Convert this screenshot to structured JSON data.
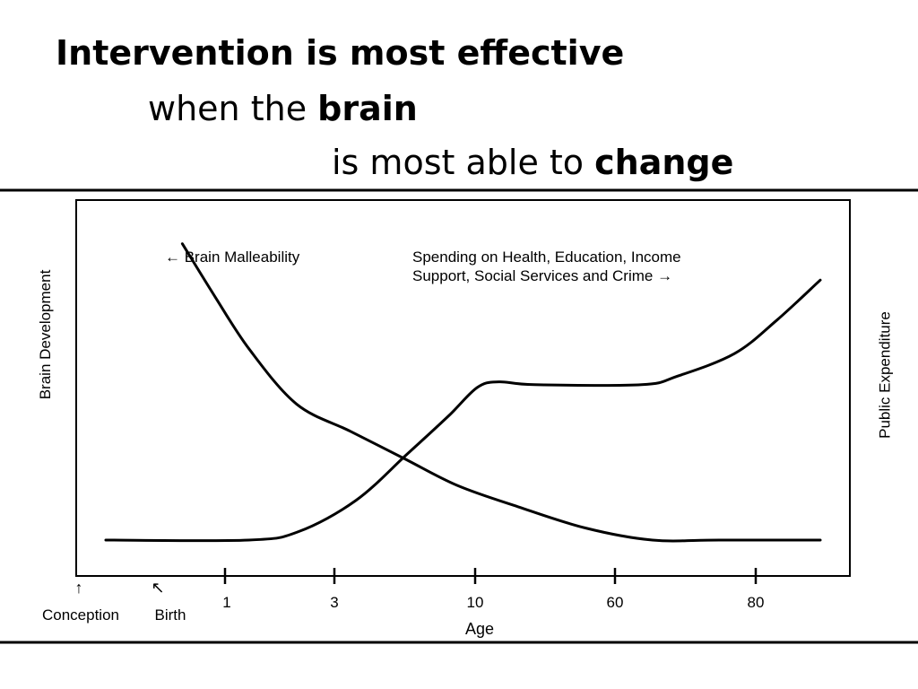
{
  "slide": {
    "title": {
      "line1": {
        "bold": "Intervention",
        "rest": " is most effective"
      },
      "line2": {
        "pre": "when the ",
        "bold": "brain"
      },
      "line3": {
        "pre": "is most able to ",
        "bold": "change"
      }
    }
  },
  "chart_data": {
    "type": "line",
    "xlabel": "Age",
    "ylabel_left": "Brain Development",
    "ylabel_right": "Public Expenditure",
    "x_ticks": [
      "1",
      "3",
      "10",
      "60",
      "80"
    ],
    "x_markers": [
      {
        "label": "Conception",
        "arrow": "↑"
      },
      {
        "label": "Birth",
        "arrow": "↖"
      }
    ],
    "y_scale": "qualitative (no tick values shown)",
    "grid": false,
    "series": [
      {
        "name": "Brain Malleability",
        "annotation": "← Brain Malleability",
        "trend": "starts high before birth, drops steeply through early childhood, flattens to a low level around age 40-60 and stays flat",
        "shape": [
          [
            0.05,
            0.98
          ],
          [
            0.1,
            0.8
          ],
          [
            0.15,
            0.63
          ],
          [
            0.22,
            0.45
          ],
          [
            0.3,
            0.36
          ],
          [
            0.38,
            0.27
          ],
          [
            0.46,
            0.18
          ],
          [
            0.55,
            0.11
          ],
          [
            0.65,
            0.04
          ],
          [
            0.75,
            0.0
          ],
          [
            0.85,
            0.0
          ],
          [
            1.0,
            0.0
          ]
        ]
      },
      {
        "name": "Spending on Health, Education, Income Support, Social Services and Crime",
        "annotation": [
          "Spending on Health, Education, Income",
          "Support, Social Services and Crime →"
        ],
        "trend": "near zero until early childhood, rises through school years to a plateau, then rises again in late adulthood",
        "shape": [
          [
            0.0,
            0.0
          ],
          [
            0.2,
            0.0
          ],
          [
            0.27,
            0.03
          ],
          [
            0.35,
            0.14
          ],
          [
            0.42,
            0.3
          ],
          [
            0.48,
            0.44
          ],
          [
            0.52,
            0.54
          ],
          [
            0.55,
            0.56
          ],
          [
            0.6,
            0.55
          ],
          [
            0.75,
            0.55
          ],
          [
            0.8,
            0.58
          ],
          [
            0.88,
            0.66
          ],
          [
            0.94,
            0.78
          ],
          [
            1.0,
            0.92
          ]
        ]
      }
    ]
  }
}
